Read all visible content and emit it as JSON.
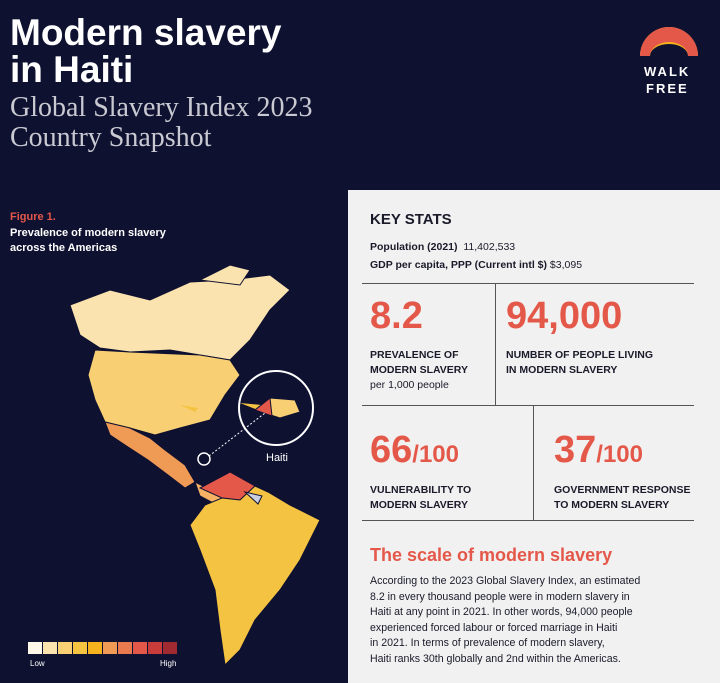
{
  "header": {
    "title": [
      "Modern slavery",
      "in Haiti"
    ],
    "subtitle": [
      "Global Slavery Index 2023",
      "Country Snapshot"
    ],
    "logo": [
      "WALK",
      "FREE"
    ]
  },
  "figure": {
    "label": "Figure 1.",
    "title": [
      "Prevalence of modern slavery",
      "across the Americas"
    ],
    "callout": "Haiti",
    "legend": {
      "low": "Low",
      "high": "High"
    }
  },
  "key_stats": {
    "heading": "KEY STATS",
    "population": {
      "label": "Population (2021)",
      "value": "11,402,533"
    },
    "gdp": {
      "label": "GDP per capita, PPP (Current intl $)",
      "value": "$3,095"
    },
    "cards": [
      {
        "value": "8.2",
        "label": [
          "PREVALENCE OF",
          "MODERN SLAVERY"
        ],
        "note": "per 1,000 people"
      },
      {
        "value": "94,000",
        "label": [
          "NUMBER OF PEOPLE LIVING",
          "IN MODERN SLAVERY"
        ]
      },
      {
        "value": "66",
        "suffix": "/100",
        "label": [
          "VULNERABILITY TO",
          "MODERN SLAVERY"
        ]
      },
      {
        "value": "37",
        "suffix": "/100",
        "label": [
          "GOVERNMENT RESPONSE",
          "TO MODERN SLAVERY"
        ]
      }
    ]
  },
  "scale": {
    "heading": "The scale of modern slavery",
    "lines": [
      "According to the 2023 Global Slavery Index, an estimated",
      "8.2 in every thousand people were in modern slavery in",
      "Haiti at any point in 2021. In other words, 94,000 people",
      "experienced forced labour or forced marriage in Haiti",
      "in 2021. In terms of prevalence of modern slavery,",
      "Haiti ranks 30th globally and 2nd within the Americas."
    ]
  }
}
